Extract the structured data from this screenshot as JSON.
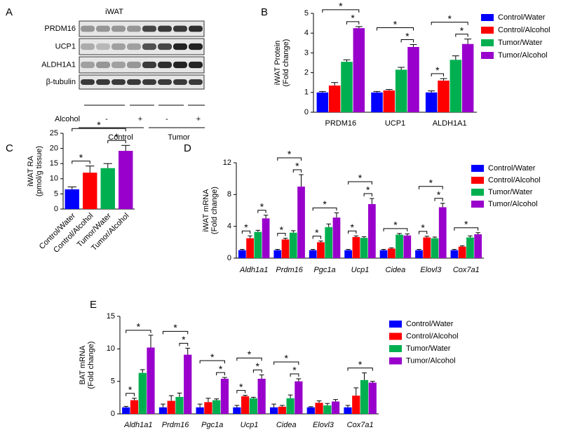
{
  "blot": {
    "label": "A",
    "title": "iWAT",
    "rows": [
      "PRDM16",
      "UCP1",
      "ALDH1A1",
      "β-tubulin"
    ],
    "treatment_label": "Alcohol",
    "treatment": [
      "-",
      "+",
      "-",
      "+"
    ],
    "groups": [
      "Control",
      "Tumor"
    ]
  },
  "chart_data": [
    {
      "type": "bar",
      "panel": "B",
      "ylabel": [
        "iWAT Protein",
        "(Fold change)"
      ],
      "categories": [
        "PRDM16",
        "UCP1",
        "ALDH1A1"
      ],
      "series": [
        {
          "name": "Control/Water",
          "color": "#0000ff",
          "values": [
            1.0,
            1.0,
            1.0
          ],
          "errors": [
            0.05,
            0.05,
            0.08
          ]
        },
        {
          "name": "Control/Alcohol",
          "color": "#ff0000",
          "values": [
            1.35,
            1.1,
            1.6
          ],
          "errors": [
            0.15,
            0.05,
            0.1
          ]
        },
        {
          "name": "Tumor/Water",
          "color": "#00b050",
          "values": [
            2.55,
            2.15,
            2.65
          ],
          "errors": [
            0.1,
            0.12,
            0.2
          ]
        },
        {
          "name": "Tumor/Alcohol",
          "color": "#9900cc",
          "values": [
            4.25,
            3.3,
            3.45
          ],
          "errors": [
            0.08,
            0.12,
            0.25
          ]
        }
      ],
      "ylim": [
        0,
        5
      ],
      "yticks": [
        0,
        1,
        2,
        3,
        4,
        5
      ],
      "legend": "right",
      "significance": [
        {
          "text": "*",
          "category": 0,
          "series": [
            2,
            3
          ]
        },
        {
          "text": "*",
          "category": 0,
          "series": [
            0,
            3
          ]
        },
        {
          "text": "*",
          "category": 1,
          "series": [
            2,
            3
          ]
        },
        {
          "text": "*",
          "category": 1,
          "series": [
            0,
            3
          ]
        },
        {
          "text": "*",
          "category": 2,
          "series": [
            0,
            1
          ]
        },
        {
          "text": "*",
          "category": 2,
          "series": [
            2,
            3
          ]
        },
        {
          "text": "*",
          "category": 2,
          "series": [
            0,
            3
          ]
        }
      ]
    },
    {
      "type": "bar",
      "panel": "C",
      "ylabel": [
        "iWAT RA",
        "(pmol/g tissue)"
      ],
      "categories": [
        "Control/Water",
        "Control/Alcohol",
        "Tumor/Water",
        "Tumor/Alcohol"
      ],
      "values": [
        6.5,
        12,
        13.5,
        19.2
      ],
      "errors": [
        0.8,
        2.2,
        1.5,
        1.8
      ],
      "colors": [
        "#0000ff",
        "#ff0000",
        "#00b050",
        "#9900cc"
      ],
      "ylim": [
        0,
        25
      ],
      "yticks": [
        0,
        5,
        10,
        15,
        20,
        25
      ],
      "significance": [
        {
          "text": "*",
          "bars": [
            0,
            1
          ]
        },
        {
          "text": "*",
          "bars": [
            2,
            3
          ]
        },
        {
          "text": "*",
          "bars": [
            0,
            3
          ]
        }
      ]
    },
    {
      "type": "bar",
      "panel": "D",
      "ylabel": [
        "iWAT mRNA",
        "(Fold change)"
      ],
      "categories": [
        "Aldh1a1",
        "Prdm16",
        "Pgc1a",
        "Ucp1",
        "Cidea",
        "Elovl3",
        "Cox7a1"
      ],
      "series": [
        {
          "name": "Control/Water",
          "color": "#0000ff",
          "values": [
            1.0,
            1.0,
            1.0,
            1.0,
            1.0,
            1.0,
            1.0
          ],
          "errors": [
            0.1,
            0.1,
            0.1,
            0.1,
            0.1,
            0.1,
            0.1
          ]
        },
        {
          "name": "Control/Alcohol",
          "color": "#ff0000",
          "values": [
            2.5,
            2.35,
            2.0,
            2.65,
            1.2,
            2.6,
            1.45
          ],
          "errors": [
            0.3,
            0.15,
            0.15,
            0.15,
            0.1,
            0.15,
            0.1
          ]
        },
        {
          "name": "Tumor/Water",
          "color": "#00b050",
          "values": [
            3.3,
            3.2,
            3.9,
            2.55,
            2.95,
            2.5,
            2.6
          ],
          "errors": [
            0.2,
            0.25,
            0.4,
            0.15,
            0.15,
            0.15,
            0.2
          ]
        },
        {
          "name": "Tumor/Alcohol",
          "color": "#9900cc",
          "values": [
            5.0,
            9.0,
            5.1,
            6.8,
            2.85,
            6.4,
            3.0
          ],
          "errors": [
            0.4,
            1.5,
            0.6,
            0.7,
            0.2,
            0.5,
            0.2
          ]
        }
      ],
      "ylim": [
        0,
        12
      ],
      "yticks": [
        0,
        4,
        8,
        12
      ],
      "legend": "right",
      "significance": [
        {
          "text": "*",
          "category": 0,
          "series": [
            0,
            1
          ]
        },
        {
          "text": "*",
          "category": 0,
          "series": [
            2,
            3
          ]
        },
        {
          "text": "*",
          "category": 1,
          "series": [
            0,
            1
          ]
        },
        {
          "text": "*",
          "category": 1,
          "series": [
            2,
            3
          ]
        },
        {
          "text": "*",
          "category": 1,
          "series": [
            0,
            3
          ]
        },
        {
          "text": "*",
          "category": 2,
          "series": [
            0,
            1
          ]
        },
        {
          "text": "*",
          "category": 2,
          "series": [
            0,
            3
          ]
        },
        {
          "text": "*",
          "category": 3,
          "series": [
            0,
            1
          ]
        },
        {
          "text": "*",
          "category": 3,
          "series": [
            2,
            3
          ]
        },
        {
          "text": "*",
          "category": 3,
          "series": [
            0,
            3
          ]
        },
        {
          "text": "*",
          "category": 4,
          "series": [
            0,
            3
          ]
        },
        {
          "text": "*",
          "category": 5,
          "series": [
            0,
            1
          ]
        },
        {
          "text": "*",
          "category": 5,
          "series": [
            2,
            3
          ]
        },
        {
          "text": "*",
          "category": 5,
          "series": [
            0,
            3
          ]
        },
        {
          "text": "*",
          "category": 6,
          "series": [
            0,
            3
          ]
        }
      ]
    },
    {
      "type": "bar",
      "panel": "E",
      "ylabel": [
        "BAT mRNA",
        "(Fold change)"
      ],
      "categories": [
        "Aldh1a1",
        "Prdm16",
        "Pgc1a",
        "Ucp1",
        "Cidea",
        "Elovl3",
        "Cox7a1"
      ],
      "series": [
        {
          "name": "Control/Water",
          "color": "#0000ff",
          "values": [
            1.0,
            1.0,
            1.0,
            1.0,
            1.0,
            1.0,
            1.0
          ],
          "errors": [
            0.15,
            0.5,
            0.5,
            0.3,
            0.5,
            0.1,
            0.3
          ]
        },
        {
          "name": "Control/Alcohol",
          "color": "#ff0000",
          "values": [
            2.1,
            2.0,
            1.8,
            2.7,
            1.1,
            1.7,
            2.8
          ],
          "errors": [
            0.3,
            0.8,
            0.6,
            0.15,
            0.2,
            0.3,
            1.2
          ]
        },
        {
          "name": "Tumor/Water",
          "color": "#00b050",
          "values": [
            6.3,
            2.6,
            2.1,
            2.4,
            2.4,
            1.3,
            5.2
          ],
          "errors": [
            0.5,
            0.6,
            0.2,
            0.15,
            0.5,
            0.3,
            1.1
          ]
        },
        {
          "name": "Tumor/Alcohol",
          "color": "#9900cc",
          "values": [
            10.2,
            9.1,
            5.4,
            5.4,
            5.0,
            1.9,
            4.8
          ],
          "errors": [
            1.9,
            1.0,
            0.2,
            0.6,
            0.4,
            0.3,
            0.2
          ]
        }
      ],
      "ylim": [
        0,
        15
      ],
      "yticks": [
        0,
        5,
        10,
        15
      ],
      "legend": "right",
      "significance": [
        {
          "text": "*",
          "category": 0,
          "series": [
            0,
            1
          ]
        },
        {
          "text": "*",
          "category": 0,
          "series": [
            0,
            3
          ]
        },
        {
          "text": "*",
          "category": 1,
          "series": [
            2,
            3
          ]
        },
        {
          "text": "*",
          "category": 1,
          "series": [
            0,
            3
          ]
        },
        {
          "text": "*",
          "category": 2,
          "series": [
            2,
            3
          ]
        },
        {
          "text": "*",
          "category": 2,
          "series": [
            0,
            3
          ]
        },
        {
          "text": "*",
          "category": 3,
          "series": [
            0,
            1
          ]
        },
        {
          "text": "*",
          "category": 3,
          "series": [
            2,
            3
          ]
        },
        {
          "text": "*",
          "category": 3,
          "series": [
            0,
            3
          ]
        },
        {
          "text": "*",
          "category": 4,
          "series": [
            2,
            3
          ]
        },
        {
          "text": "*",
          "category": 4,
          "series": [
            0,
            3
          ]
        },
        {
          "text": "*",
          "category": 6,
          "series": [
            0,
            3
          ]
        }
      ]
    }
  ]
}
